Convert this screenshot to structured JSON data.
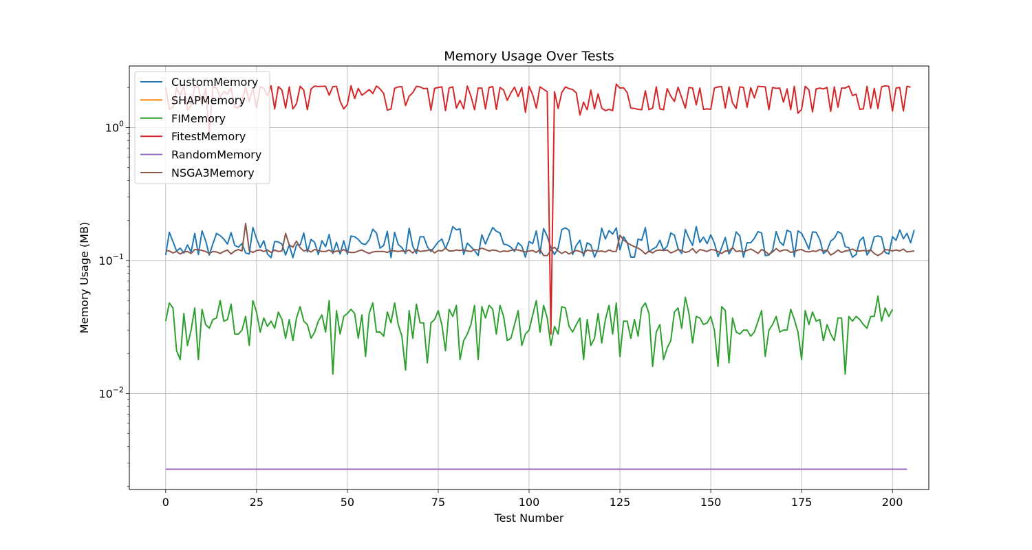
{
  "chart_data": {
    "type": "line",
    "title": "Memory Usage Over Tests",
    "xlabel": "Test Number",
    "ylabel": "Memory Usage (MB)",
    "xlim": [
      -10,
      210
    ],
    "ylim": [
      0.0019,
      2.9
    ],
    "yscale": "log",
    "grid": true,
    "legend": "upper-left",
    "x_ticks": [
      0,
      25,
      50,
      75,
      100,
      125,
      150,
      175,
      200
    ],
    "y_ticks": [
      {
        "base": "10",
        "exp": "0",
        "value": 1
      },
      {
        "base": "10",
        "exp": "−1",
        "value": 0.1
      },
      {
        "base": "10",
        "exp": "−2",
        "value": 0.01
      }
    ],
    "series": [
      {
        "name": "CustomMemory",
        "color": "#1f77b4",
        "x_start": 0,
        "x_step": 1,
        "values": [
          0.11,
          0.163,
          0.139,
          0.118,
          0.124,
          0.114,
          0.131,
          0.116,
          0.16,
          0.111,
          0.167,
          0.141,
          0.11,
          0.134,
          0.16,
          0.154,
          0.145,
          0.133,
          0.162,
          0.13,
          0.126,
          0.134,
          0.114,
          0.112,
          0.177,
          0.146,
          0.125,
          0.141,
          0.112,
          0.105,
          0.139,
          0.138,
          0.133,
          0.11,
          0.131,
          0.105,
          0.131,
          0.131,
          0.161,
          0.116,
          0.144,
          0.137,
          0.111,
          0.141,
          0.127,
          0.157,
          0.113,
          0.137,
          0.112,
          0.141,
          0.112,
          0.153,
          0.151,
          0.144,
          0.134,
          0.132,
          0.143,
          0.172,
          0.161,
          0.124,
          0.13,
          0.166,
          0.105,
          0.163,
          0.132,
          0.125,
          0.113,
          0.175,
          0.128,
          0.113,
          0.151,
          0.151,
          0.127,
          0.117,
          0.127,
          0.138,
          0.145,
          0.123,
          0.143,
          0.18,
          0.17,
          0.173,
          0.111,
          0.135,
          0.127,
          0.119,
          0.109,
          0.156,
          0.133,
          0.155,
          0.177,
          0.166,
          0.161,
          0.133,
          0.131,
          0.126,
          0.117,
          0.136,
          0.128,
          0.106,
          0.139,
          0.134,
          0.167,
          0.113,
          0.174,
          0.152,
          0.125,
          0.111,
          0.124,
          0.171,
          0.176,
          0.169,
          0.111,
          0.13,
          0.142,
          0.108,
          0.136,
          0.131,
          0.106,
          0.122,
          0.175,
          0.145,
          0.168,
          0.158,
          0.176,
          0.12,
          0.151,
          0.137,
          0.106,
          0.106,
          0.145,
          0.142,
          0.177,
          0.116,
          0.122,
          0.126,
          0.142,
          0.12,
          0.128,
          0.161,
          0.155,
          0.123,
          0.113,
          0.171,
          0.147,
          0.13,
          0.18,
          0.137,
          0.15,
          0.134,
          0.156,
          0.135,
          0.107,
          0.125,
          0.149,
          0.112,
          0.125,
          0.164,
          0.153,
          0.106,
          0.136,
          0.136,
          0.147,
          0.165,
          0.161,
          0.109,
          0.11,
          0.119,
          0.165,
          0.138,
          0.13,
          0.169,
          0.164,
          0.107,
          0.167,
          0.16,
          0.141,
          0.122,
          0.164,
          0.163,
          0.144,
          0.113,
          0.119,
          0.14,
          0.147,
          0.165,
          0.159,
          0.127,
          0.125,
          0.106,
          0.111,
          0.141,
          0.15,
          0.11,
          0.121,
          0.151,
          0.153,
          0.15,
          0.115,
          0.112,
          0.151,
          0.142,
          0.17,
          0.146,
          0.16,
          0.136,
          0.17
        ]
      },
      {
        "name": "SHAPMemory",
        "color": "#ff7f0e",
        "x_start": 0,
        "x_step": 1,
        "values": []
      },
      {
        "name": "FIMemory",
        "color": "#2ca02c",
        "x_start": 0,
        "x_step": 1,
        "values": [
          0.035,
          0.048,
          0.044,
          0.021,
          0.018,
          0.04,
          0.023,
          0.03,
          0.044,
          0.018,
          0.043,
          0.033,
          0.031,
          0.036,
          0.037,
          0.05,
          0.035,
          0.036,
          0.047,
          0.028,
          0.028,
          0.03,
          0.038,
          0.023,
          0.05,
          0.041,
          0.029,
          0.037,
          0.032,
          0.035,
          0.031,
          0.041,
          0.036,
          0.026,
          0.036,
          0.025,
          0.037,
          0.045,
          0.035,
          0.033,
          0.026,
          0.029,
          0.035,
          0.039,
          0.029,
          0.05,
          0.014,
          0.042,
          0.028,
          0.038,
          0.04,
          0.043,
          0.04,
          0.026,
          0.039,
          0.019,
          0.04,
          0.048,
          0.029,
          0.029,
          0.027,
          0.041,
          0.034,
          0.048,
          0.033,
          0.027,
          0.015,
          0.042,
          0.026,
          0.047,
          0.034,
          0.034,
          0.017,
          0.034,
          0.036,
          0.042,
          0.033,
          0.021,
          0.043,
          0.038,
          0.046,
          0.018,
          0.025,
          0.028,
          0.033,
          0.046,
          0.018,
          0.045,
          0.037,
          0.046,
          0.043,
          0.028,
          0.046,
          0.038,
          0.025,
          0.026,
          0.033,
          0.042,
          0.023,
          0.028,
          0.03,
          0.039,
          0.05,
          0.029,
          0.046,
          0.037,
          0.023,
          0.032,
          0.028,
          0.045,
          0.044,
          0.032,
          0.029,
          0.033,
          0.037,
          0.018,
          0.036,
          0.023,
          0.026,
          0.04,
          0.024,
          0.036,
          0.046,
          0.028,
          0.048,
          0.019,
          0.035,
          0.035,
          0.026,
          0.036,
          0.027,
          0.044,
          0.048,
          0.04,
          0.016,
          0.029,
          0.033,
          0.018,
          0.022,
          0.025,
          0.041,
          0.044,
          0.031,
          0.053,
          0.04,
          0.024,
          0.038,
          0.037,
          0.033,
          0.034,
          0.038,
          0.03,
          0.016,
          0.045,
          0.042,
          0.017,
          0.037,
          0.029,
          0.028,
          0.03,
          0.03,
          0.027,
          0.029,
          0.035,
          0.042,
          0.019,
          0.03,
          0.033,
          0.038,
          0.029,
          0.03,
          0.03,
          0.043,
          0.036,
          0.029,
          0.018,
          0.042,
          0.033,
          0.041,
          0.035,
          0.036,
          0.025,
          0.033,
          0.028,
          0.025,
          0.037,
          0.037,
          0.014,
          0.038,
          0.035,
          0.038,
          0.036,
          0.033,
          0.031,
          0.038,
          0.038,
          0.054,
          0.035,
          0.044,
          0.038,
          0.043
        ]
      },
      {
        "name": "FitestMemory",
        "color": "#d62728",
        "x_start": 0,
        "x_step": 1,
        "values": [
          2.0,
          1.37,
          1.42,
          1.98,
          1.74,
          2.05,
          1.35,
          1.47,
          2.03,
          2.02,
          1.46,
          1.97,
          0.91,
          2.01,
          1.98,
          1.7,
          1.86,
          1.78,
          1.98,
          1.41,
          1.41,
          1.57,
          2.02,
          1.56,
          1.99,
          1.4,
          2.02,
          1.97,
          1.73,
          2.06,
          1.38,
          2.03,
          1.91,
          1.4,
          2.02,
          1.38,
          1.51,
          2.04,
          1.91,
          1.36,
          1.95,
          2.05,
          2.03,
          2.04,
          2.04,
          1.75,
          2.03,
          2.04,
          1.58,
          1.38,
          1.49,
          2.06,
          1.65,
          1.97,
          1.75,
          1.83,
          1.93,
          1.8,
          2.05,
          1.95,
          1.8,
          1.35,
          1.38,
          1.97,
          2.02,
          2.03,
          1.46,
          1.72,
          1.83,
          2.04,
          2.02,
          1.96,
          1.97,
          1.35,
          1.97,
          2.0,
          2.02,
          1.34,
          1.98,
          2.02,
          1.4,
          1.6,
          1.38,
          2.05,
          1.72,
          1.36,
          1.98,
          1.98,
          1.38,
          2.0,
          2.03,
          1.37,
          2.0,
          1.91,
          1.6,
          1.82,
          2.01,
          1.71,
          2.0,
          1.3,
          2.04,
          1.76,
          1.4,
          2.02,
          1.94,
          1.86,
          0.028,
          1.86,
          1.39,
          1.83,
          2.02,
          1.96,
          1.93,
          1.82,
          1.24,
          1.55,
          1.36,
          1.91,
          1.38,
          1.79,
          1.4,
          1.34,
          1.37,
          1.34,
          2.12,
          1.98,
          1.99,
          1.83,
          1.4,
          1.39,
          1.37,
          1.36,
          1.89,
          1.36,
          1.4,
          2.02,
          1.38,
          1.36,
          1.96,
          1.72,
          1.57,
          2.01,
          1.68,
          1.4,
          2.0,
          1.98,
          1.48,
          1.98,
          1.37,
          1.38,
          1.37,
          1.98,
          2.02,
          2.03,
          1.4,
          2.02,
          1.53,
          1.39,
          2.02,
          2.0,
          1.42,
          1.99,
          1.67,
          2.04,
          2.03,
          2.02,
          1.36,
          2.0,
          1.97,
          1.98,
          1.55,
          1.95,
          1.36,
          2.04,
          1.28,
          1.37,
          2.04,
          1.92,
          1.31,
          1.95,
          1.98,
          1.95,
          2.0,
          1.32,
          2.02,
          1.42,
          1.98,
          1.98,
          2.05,
          1.74,
          1.78,
          1.37,
          1.38,
          2.04,
          1.39,
          1.97,
          1.39,
          2.02,
          2.06,
          2.04,
          1.33,
          1.98,
          2.0,
          1.33,
          2.04,
          2.01
        ]
      },
      {
        "name": "RandomMemory",
        "color": "#9467bd",
        "x_start": 0,
        "x_step": 1,
        "values": [
          0.0027,
          0.0027,
          0.0027,
          0.0027,
          0.0027,
          0.0027,
          0.0027,
          0.0027,
          0.0027,
          0.0027,
          0.0027,
          0.0027,
          0.0027,
          0.0027,
          0.0027,
          0.0027,
          0.0027,
          0.0027,
          0.0027,
          0.0027,
          0.0027,
          0.0027,
          0.0027,
          0.0027,
          0.0027,
          0.0027,
          0.0027,
          0.0027,
          0.0027,
          0.0027,
          0.0027,
          0.0027,
          0.0027,
          0.0027,
          0.0027,
          0.0027,
          0.0027,
          0.0027,
          0.0027,
          0.0027,
          0.0027,
          0.0027,
          0.0027,
          0.0027,
          0.0027,
          0.0027,
          0.0027,
          0.0027,
          0.0027,
          0.0027,
          0.0027,
          0.0027,
          0.0027,
          0.0027,
          0.0027,
          0.0027,
          0.0027,
          0.0027,
          0.0027,
          0.0027,
          0.0027,
          0.0027,
          0.0027,
          0.0027,
          0.0027,
          0.0027,
          0.0027,
          0.0027,
          0.0027,
          0.0027,
          0.0027,
          0.0027,
          0.0027,
          0.0027,
          0.0027,
          0.0027,
          0.0027,
          0.0027,
          0.0027,
          0.0027,
          0.0027,
          0.0027,
          0.0027,
          0.0027,
          0.0027,
          0.0027,
          0.0027,
          0.0027,
          0.0027,
          0.0027,
          0.0027,
          0.0027,
          0.0027,
          0.0027,
          0.0027,
          0.0027,
          0.0027,
          0.0027,
          0.0027,
          0.0027,
          0.0027,
          0.0027,
          0.0027,
          0.0027,
          0.0027,
          0.0027,
          0.0027,
          0.0027,
          0.0027,
          0.0027,
          0.0027,
          0.0027,
          0.0027,
          0.0027,
          0.0027,
          0.0027,
          0.0027,
          0.0027,
          0.0027,
          0.0027,
          0.0027,
          0.0027,
          0.0027,
          0.0027,
          0.0027,
          0.0027,
          0.0027,
          0.0027,
          0.0027,
          0.0027,
          0.0027,
          0.0027,
          0.0027,
          0.0027,
          0.0027,
          0.0027,
          0.0027,
          0.0027,
          0.0027,
          0.0027,
          0.0027,
          0.0027,
          0.0027,
          0.0027,
          0.0027,
          0.0027,
          0.0027,
          0.0027,
          0.0027,
          0.0027,
          0.0027,
          0.0027,
          0.0027,
          0.0027,
          0.0027,
          0.0027,
          0.0027,
          0.0027,
          0.0027,
          0.0027,
          0.0027,
          0.0027,
          0.0027,
          0.0027,
          0.0027,
          0.0027,
          0.0027,
          0.0027,
          0.0027,
          0.0027,
          0.0027,
          0.0027,
          0.0027,
          0.0027,
          0.0027,
          0.0027,
          0.0027,
          0.0027,
          0.0027,
          0.0027,
          0.0027,
          0.0027,
          0.0027,
          0.0027,
          0.0027,
          0.0027,
          0.0027,
          0.0027,
          0.0027,
          0.0027,
          0.0027,
          0.0027,
          0.0027,
          0.0027,
          0.0027,
          0.0027,
          0.0027,
          0.0027,
          0.0027,
          0.0027,
          0.0027,
          0.0027,
          0.0027,
          0.0027,
          0.0027
        ]
      },
      {
        "name": "NSGA3Memory",
        "color": "#8c564b",
        "x_start": 0,
        "x_step": 1,
        "values": [
          0.119,
          0.118,
          0.114,
          0.117,
          0.112,
          0.116,
          0.117,
          0.113,
          0.121,
          0.121,
          0.119,
          0.117,
          0.113,
          0.117,
          0.116,
          0.113,
          0.117,
          0.12,
          0.112,
          0.118,
          0.121,
          0.118,
          0.19,
          0.119,
          0.115,
          0.119,
          0.12,
          0.117,
          0.12,
          0.115,
          0.12,
          0.117,
          0.118,
          0.16,
          0.131,
          0.126,
          0.14,
          0.125,
          0.118,
          0.12,
          0.116,
          0.121,
          0.119,
          0.117,
          0.117,
          0.12,
          0.115,
          0.118,
          0.117,
          0.121,
          0.116,
          0.115,
          0.115,
          0.118,
          0.12,
          0.116,
          0.113,
          0.116,
          0.117,
          0.117,
          0.117,
          0.115,
          0.119,
          0.118,
          0.117,
          0.118,
          0.117,
          0.12,
          0.114,
          0.121,
          0.117,
          0.118,
          0.119,
          0.121,
          0.114,
          0.119,
          0.118,
          0.124,
          0.118,
          0.118,
          0.12,
          0.119,
          0.12,
          0.118,
          0.117,
          0.121,
          0.12,
          0.124,
          0.121,
          0.118,
          0.12,
          0.119,
          0.116,
          0.118,
          0.117,
          0.119,
          0.121,
          0.12,
          0.118,
          0.116,
          0.118,
          0.119,
          0.115,
          0.121,
          0.109,
          0.109,
          0.12,
          0.126,
          0.118,
          0.113,
          0.117,
          0.112,
          0.116,
          0.119,
          0.117,
          0.113,
          0.12,
          0.118,
          0.119,
          0.117,
          0.118,
          0.116,
          0.12,
          0.117,
          0.117,
          0.155,
          0.143,
          0.136,
          0.131,
          0.127,
          0.124,
          0.119,
          0.112,
          0.118,
          0.114,
          0.119,
          0.12,
          0.119,
          0.12,
          0.114,
          0.117,
          0.121,
          0.119,
          0.115,
          0.117,
          0.123,
          0.114,
          0.121,
          0.119,
          0.117,
          0.121,
          0.12,
          0.117,
          0.113,
          0.118,
          0.118,
          0.125,
          0.117,
          0.118,
          0.116,
          0.119,
          0.122,
          0.118,
          0.113,
          0.121,
          0.117,
          0.111,
          0.116,
          0.123,
          0.117,
          0.12,
          0.12,
          0.115,
          0.117,
          0.12,
          0.121,
          0.117,
          0.116,
          0.118,
          0.117,
          0.121,
          0.118,
          0.12,
          0.11,
          0.114,
          0.12,
          0.115,
          0.118,
          0.119,
          0.122,
          0.118,
          0.118,
          0.119,
          0.118,
          0.12,
          0.113,
          0.109,
          0.113,
          0.121,
          0.12,
          0.118,
          0.12,
          0.118,
          0.122,
          0.116,
          0.117,
          0.118
        ]
      }
    ]
  }
}
